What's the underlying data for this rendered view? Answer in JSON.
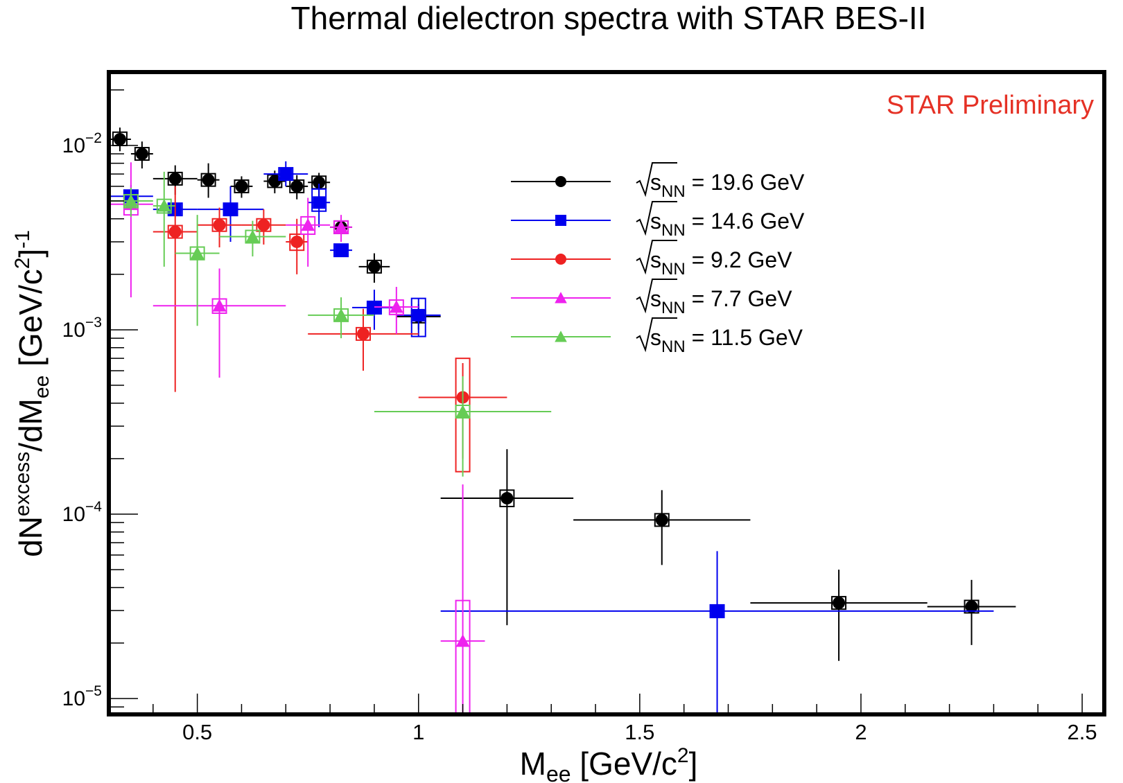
{
  "chart_data": {
    "type": "scatter",
    "title": "Thermal dielectron spectra with STAR BES-II",
    "annotation": "STAR Preliminary",
    "xlabel": {
      "base": "M",
      "sub": "ee",
      "unit_open": " [GeV/c",
      "unit_sup": "2",
      "unit_close": "]"
    },
    "ylabel": {
      "base": "dN",
      "sup1": "excess",
      "mid": "/dM",
      "sub": "ee",
      "unit_open": " [GeV/c",
      "unit_sup": "2",
      "unit_close": "]",
      "unit_exp": "-1"
    },
    "x_axis": {
      "range": [
        0.3,
        2.55
      ],
      "major_ticks": [
        0.5,
        1,
        1.5,
        2,
        2.5
      ],
      "major_labels": [
        "0.5",
        "1",
        "1.5",
        "2",
        "2.5"
      ],
      "minor_step": 0.1
    },
    "y_axis": {
      "scale": "log",
      "range": [
        8.2e-06,
        0.025
      ],
      "tick_labels": [
        {
          "value": 0.01,
          "base": "10",
          "exp": "−2"
        },
        {
          "value": 0.001,
          "base": "10",
          "exp": "−3"
        },
        {
          "value": 0.0001,
          "base": "10",
          "exp": "−4"
        },
        {
          "value": 1e-05,
          "base": "10",
          "exp": "−5"
        }
      ]
    },
    "legend_placement": "top-center",
    "legend_prefix": "s",
    "legend_prefix_sub": "NN",
    "series": [
      {
        "name": "19.6 GeV",
        "color": "#000000",
        "marker": "circle",
        "points": [
          {
            "x": 0.325,
            "y": 0.0108,
            "xerr": 0.025,
            "ystat": [
              0.0093,
              0.0125
            ],
            "ysys": [
              0.01,
              0.0118
            ]
          },
          {
            "x": 0.375,
            "y": 0.009,
            "xerr": 0.025,
            "ystat": [
              0.0075,
              0.0105
            ],
            "ysys": [
              0.0084,
              0.0097
            ]
          },
          {
            "x": 0.45,
            "y": 0.0066,
            "xerr": 0.05,
            "ystat": [
              0.0054,
              0.0078
            ],
            "ysys": [
              0.0062,
              0.0071
            ]
          },
          {
            "x": 0.525,
            "y": 0.0065,
            "xerr": 0.025,
            "ystat": [
              0.0052,
              0.008
            ],
            "ysys": [
              0.0062,
              0.0068
            ]
          },
          {
            "x": 0.6,
            "y": 0.006,
            "xerr": 0.025,
            "ystat": [
              0.0052,
              0.0068
            ],
            "ysys": [
              0.0058,
              0.0062
            ]
          },
          {
            "x": 0.675,
            "y": 0.0064,
            "xerr": 0.025,
            "ystat": [
              0.0055,
              0.0073
            ],
            "ysys": [
              0.0061,
              0.0067
            ]
          },
          {
            "x": 0.725,
            "y": 0.006,
            "xerr": 0.025,
            "ystat": [
              0.0051,
              0.0069
            ],
            "ysys": [
              0.0058,
              0.0062
            ]
          },
          {
            "x": 0.775,
            "y": 0.0063,
            "xerr": 0.025,
            "ystat": [
              0.005,
              0.0071
            ],
            "ysys": [
              0.006,
              0.0066
            ]
          },
          {
            "x": 0.825,
            "y": 0.0036,
            "xerr": 0.025,
            "ystat": [
              0.0033,
              0.0039
            ],
            "ysys": [
              0.0035,
              0.0037
            ]
          },
          {
            "x": 0.9,
            "y": 0.0022,
            "xerr": 0.035,
            "ystat": [
              0.0018,
              0.0026
            ],
            "ysys": [
              0.0021,
              0.0023
            ]
          },
          {
            "x": 1.0,
            "y": 0.00118,
            "xerr": 0.05,
            "ystat": [
              0.001,
              0.00138
            ],
            "ysys": [
              0.00112,
              0.00124
            ]
          },
          {
            "x": 1.2,
            "y": 0.000122,
            "xerr": 0.15,
            "ystat": [
              2.5e-05,
              0.000225
            ],
            "ysys": [
              0.00011,
              0.000135
            ]
          },
          {
            "x": 1.55,
            "y": 9.3e-05,
            "xerr": 0.2,
            "ystat": [
              5.3e-05,
              0.000135
            ],
            "ysys": [
              8.8e-05,
              9.8e-05
            ]
          },
          {
            "x": 1.95,
            "y": 3.3e-05,
            "xerr": 0.2,
            "ystat": [
              1.6e-05,
              5e-05
            ],
            "ysys": [
              3.2e-05,
              3.5e-05
            ]
          },
          {
            "x": 2.25,
            "y": 3.15e-05,
            "xerr": 0.1,
            "ystat": [
              1.95e-05,
              4.4e-05
            ],
            "ysys": [
              3e-05,
              3.3e-05
            ]
          }
        ]
      },
      {
        "name": "14.6 GeV",
        "color": "#0000ee",
        "marker": "square",
        "points": [
          {
            "x": 0.35,
            "y": 0.0053,
            "xerr": 0.05,
            "ystat": [
              0.0045,
              0.0061
            ],
            "ysys": [
              0.0049,
              0.0057
            ]
          },
          {
            "x": 0.45,
            "y": 0.0045,
            "xerr": 0.05,
            "ystat": [
              0.0042,
              0.0048
            ],
            "ysys": [
              0.0043,
              0.0047
            ]
          },
          {
            "x": 0.575,
            "y": 0.0045,
            "xerr": 0.075,
            "ystat": [
              0.003,
              0.006
            ],
            "ysys": [
              0.0043,
              0.0047
            ]
          },
          {
            "x": 0.7,
            "y": 0.007,
            "xerr": 0.05,
            "ystat": [
              0.006,
              0.0082
            ],
            "ysys": [
              0.0067,
              0.0073
            ]
          },
          {
            "x": 0.775,
            "y": 0.0049,
            "xerr": 0.025,
            "ystat": [
              0.0036,
              0.0062
            ],
            "ysys": [
              0.0044,
              0.0058
            ]
          },
          {
            "x": 0.825,
            "y": 0.0027,
            "xerr": 0.025,
            "ystat": [
              0.0025,
              0.0029
            ],
            "ysys": [
              0.0026,
              0.0028
            ]
          },
          {
            "x": 0.9,
            "y": 0.00132,
            "xerr": 0.05,
            "ystat": [
              0.001,
              0.00165
            ],
            "ysys": [
              0.00122,
              0.00142
            ]
          },
          {
            "x": 1.0,
            "y": 0.0012,
            "xerr": 0.05,
            "ystat": [
              0.00092,
              0.00148
            ],
            "ysys": [
              0.00092,
              0.00148
            ]
          },
          {
            "x": 1.675,
            "y": 2.98e-05,
            "xerr": 0.625,
            "ystat": [
              8.2e-06,
              6.3e-05
            ],
            "ysys": [
              2.75e-05,
              3.2e-05
            ]
          }
        ]
      },
      {
        "name": "9.2 GeV",
        "color": "#ee2222",
        "marker": "circle",
        "points": [
          {
            "x": 0.45,
            "y": 0.0034,
            "xerr": 0.05,
            "ystat": [
              0.00046,
              0.006
            ],
            "ysys": [
              0.0032,
              0.0036
            ]
          },
          {
            "x": 0.55,
            "y": 0.0037,
            "xerr": 0.05,
            "ystat": [
              0.0028,
              0.0046
            ],
            "ysys": [
              0.0035,
              0.0039
            ]
          },
          {
            "x": 0.65,
            "y": 0.0037,
            "xerr": 0.05,
            "ystat": [
              0.0029,
              0.0045
            ],
            "ysys": [
              0.0035,
              0.0039
            ]
          },
          {
            "x": 0.725,
            "y": 0.003,
            "xerr": 0.025,
            "ystat": [
              0.002,
              0.004
            ],
            "ysys": [
              0.0027,
              0.0033
            ]
          },
          {
            "x": 0.875,
            "y": 0.00095,
            "xerr": 0.125,
            "ystat": [
              0.0006,
              0.0013
            ],
            "ysys": [
              0.00089,
              0.00101
            ]
          },
          {
            "x": 1.1,
            "y": 0.00043,
            "xerr": 0.1,
            "ystat": [
              0.0002,
              0.00066
            ],
            "ysys": [
              0.00017,
              0.0007
            ]
          }
        ]
      },
      {
        "name": "7.7 GeV",
        "color": "#ee22ee",
        "marker": "triangle",
        "points": [
          {
            "x": 0.35,
            "y": 0.0048,
            "xerr": 0.05,
            "ystat": [
              0.0015,
              0.0081
            ],
            "ysys": [
              0.0042,
              0.0054
            ]
          },
          {
            "x": 0.55,
            "y": 0.00135,
            "xerr": 0.15,
            "ystat": [
              0.00055,
              0.00215
            ],
            "ysys": [
              0.00123,
              0.00147
            ]
          },
          {
            "x": 0.75,
            "y": 0.0037,
            "xerr": 0.05,
            "ystat": [
              0.0022,
              0.0052
            ],
            "ysys": [
              0.0033,
              0.0041
            ]
          },
          {
            "x": 0.825,
            "y": 0.0036,
            "xerr": 0.025,
            "ystat": [
              0.003,
              0.0042
            ],
            "ysys": [
              0.0034,
              0.0038
            ]
          },
          {
            "x": 0.95,
            "y": 0.00133,
            "xerr": 0.05,
            "ystat": [
              0.00095,
              0.00171
            ],
            "ysys": [
              0.00121,
              0.00145
            ]
          },
          {
            "x": 1.1,
            "y": 2.05e-05,
            "xerr": 0.05,
            "ystat": [
              8.2e-06,
              0.000145
            ],
            "ysys": [
              8.2e-06,
              3.4e-05
            ]
          }
        ]
      },
      {
        "name": "11.5 GeV",
        "color": "#66cc55",
        "marker": "triangle",
        "points": [
          {
            "x": 0.35,
            "y": 0.005,
            "xerr": 0.05,
            "ystat": [
              0.0041,
              0.0059
            ],
            "ysys": [
              0.0046,
              0.0054
            ]
          },
          {
            "x": 0.425,
            "y": 0.0047,
            "xerr": 0.025,
            "ystat": [
              0.0022,
              0.0072
            ],
            "ysys": [
              0.0043,
              0.0051
            ]
          },
          {
            "x": 0.5,
            "y": 0.0026,
            "xerr": 0.05,
            "ystat": [
              0.00105,
              0.0042
            ],
            "ysys": [
              0.0024,
              0.0028
            ]
          },
          {
            "x": 0.625,
            "y": 0.0032,
            "xerr": 0.075,
            "ystat": [
              0.0025,
              0.0039
            ],
            "ysys": [
              0.003,
              0.0034
            ]
          },
          {
            "x": 0.825,
            "y": 0.0012,
            "xerr": 0.075,
            "ystat": [
              0.0009,
              0.0015
            ],
            "ysys": [
              0.00113,
              0.00127
            ]
          },
          {
            "x": 1.1,
            "y": 0.00036,
            "xerr": 0.2,
            "ystat": [
              0.00016,
              0.00056
            ],
            "ysys": [
              0.00034,
              0.00038
            ]
          }
        ]
      }
    ]
  }
}
